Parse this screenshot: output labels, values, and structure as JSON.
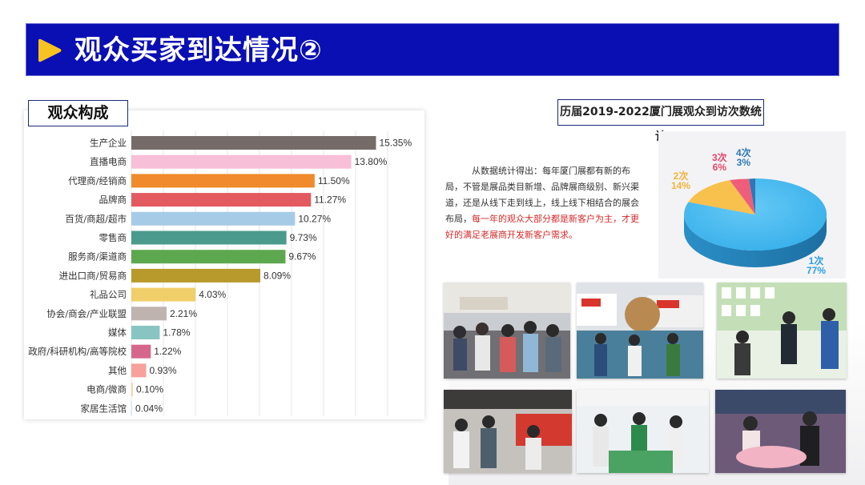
{
  "header": {
    "title": "观众买家到达情况②"
  },
  "composition": {
    "tag": "观众构成",
    "chart_data": {
      "type": "bar",
      "orientation": "horizontal",
      "categories": [
        "生产企业",
        "直播电商",
        "代理商/经销商",
        "品牌商",
        "百货/商超/超市",
        "零售商",
        "服务商/渠道商",
        "进出口商/贸易商",
        "礼品公司",
        "协会/商会/产业联盟",
        "媒体",
        "政府/科研机构/高等院校",
        "其他",
        "电商/微商",
        "家居生活馆"
      ],
      "values": [
        15.35,
        13.8,
        11.5,
        11.27,
        10.27,
        9.73,
        9.67,
        8.09,
        4.03,
        2.21,
        1.78,
        1.22,
        0.93,
        0.1,
        0.04
      ],
      "value_labels": [
        "15.35%",
        "13.80%",
        "11.50%",
        "11.27%",
        "10.27%",
        "9.73%",
        "9.67%",
        "8.09%",
        "4.03%",
        "2.21%",
        "1.78%",
        "1.22%",
        "0.93%",
        "0.10%",
        "0.04%"
      ],
      "colors": [
        "#756b68",
        "#f7bfd8",
        "#f08a2c",
        "#e35a61",
        "#a6cbe6",
        "#4b9a8e",
        "#5da84e",
        "#b89a2c",
        "#f0cf6a",
        "#bfb3b0",
        "#88c5c2",
        "#d6678c",
        "#f7a09c",
        "#f6d7a9",
        "#cfe3f2"
      ],
      "xlim": [
        0,
        16
      ],
      "grid": true
    }
  },
  "visits": {
    "tag": "历届2019-2022厦门展观众到访次数统计",
    "description_plain": "从数据统计得出：每年厦门展都有新的布局，不管是展品类目新增、品牌展商级别、新兴渠道，还是从线下走到线上，线上线下相结合的展会布局，",
    "description_highlight": "每一年的观众大部分都是新客户为主，才更好的满足老展商开发新客户需求。",
    "chart_data": {
      "type": "pie",
      "labels": [
        "1次",
        "2次",
        "3次",
        "4次"
      ],
      "values": [
        77,
        14,
        6,
        3
      ],
      "value_labels": [
        "77%",
        "14%",
        "6%",
        "3%"
      ],
      "colors": [
        "#3fb5ee",
        "#f8c04c",
        "#ee5e7a",
        "#2e78b5"
      ]
    }
  },
  "photos": [
    {
      "name": "exhibition-crowd-photo-1"
    },
    {
      "name": "exhibition-booth-photo-2"
    },
    {
      "name": "exhibition-booth-photo-3"
    },
    {
      "name": "exhibition-crowd-photo-4"
    },
    {
      "name": "exhibition-booth-photo-5"
    },
    {
      "name": "exhibition-booth-photo-6"
    }
  ]
}
